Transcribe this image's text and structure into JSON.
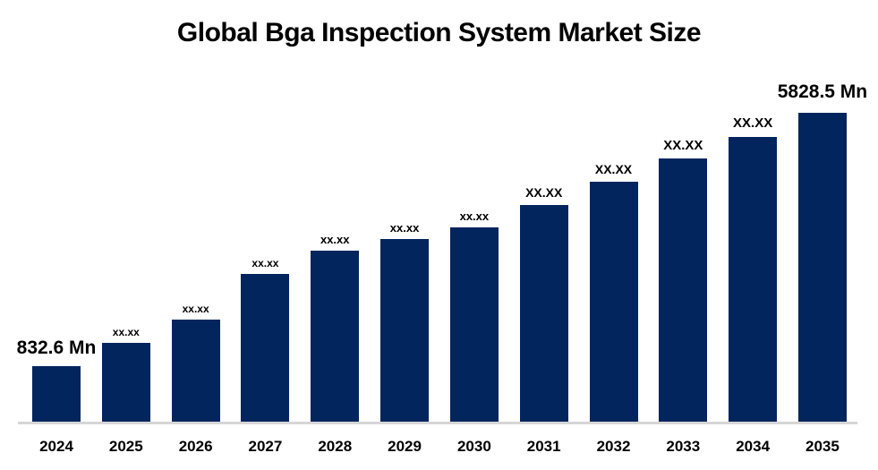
{
  "page": {
    "background": "#ffffff"
  },
  "chart_data": {
    "type": "bar",
    "title": "Global Bga Inspection System Market Size",
    "xlabel": "",
    "ylabel": "",
    "unit": "Mn",
    "grid": false,
    "legend": false,
    "categories": [
      "2024",
      "2025",
      "2026",
      "2027",
      "2028",
      "2029",
      "2030",
      "2031",
      "2032",
      "2033",
      "2034",
      "2035"
    ],
    "bar_labels": [
      "832.6 Mn",
      "xx.xx",
      "xx.xx",
      "xx.xx",
      "xx.xx",
      "xx.xx",
      "xx.xx",
      "XX.XX",
      "XX.XX",
      "XX.XX",
      "XX.XX",
      "5828.5 Mn"
    ],
    "values_mn": [
      832.6,
      null,
      null,
      null,
      null,
      null,
      null,
      null,
      null,
      null,
      null,
      5828.5
    ],
    "masked_value_label": "xx.xx",
    "relative_heights": [
      0.18,
      0.255,
      0.33,
      0.478,
      0.554,
      0.591,
      0.629,
      0.701,
      0.777,
      0.852,
      0.922,
      1.0
    ],
    "colors": {
      "bar": "#03255e",
      "axis_line": "#d6d6d6",
      "text": "#000000"
    }
  }
}
